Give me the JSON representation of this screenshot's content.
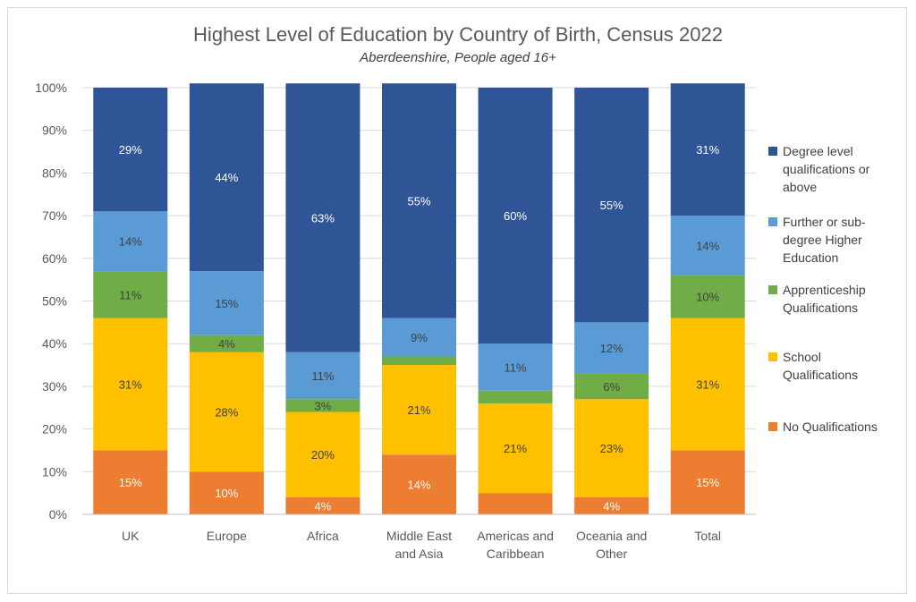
{
  "chart_data": {
    "type": "bar",
    "stacked": true,
    "title": "Highest Level of Education by Country of Birth, Census 2022",
    "subtitle": "Aberdeenshire, People aged 16+",
    "xlabel": "",
    "ylabel": "",
    "ylim": [
      0,
      100
    ],
    "yticks": [
      "0%",
      "10%",
      "20%",
      "30%",
      "40%",
      "50%",
      "60%",
      "70%",
      "80%",
      "90%",
      "100%"
    ],
    "grid": true,
    "legend_position": "right",
    "categories": [
      [
        "UK"
      ],
      [
        "Europe"
      ],
      [
        "Africa"
      ],
      [
        "Middle East",
        "and Asia"
      ],
      [
        "Americas and",
        "Caribbean"
      ],
      [
        "Oceania and",
        "Other"
      ],
      [
        "Total"
      ]
    ],
    "series": [
      {
        "name": "No Qualifications",
        "color": "#ed7d31",
        "label_color": "#ffffff",
        "values": [
          15,
          10,
          4,
          14,
          5,
          4,
          15
        ],
        "labels": [
          "15%",
          "10%",
          "4%",
          "14%",
          "",
          "4%",
          "15%"
        ]
      },
      {
        "name": "School Qualifications",
        "color": "#ffc000",
        "label_color": "#404040",
        "values": [
          31,
          28,
          20,
          21,
          21,
          23,
          31
        ],
        "labels": [
          "31%",
          "28%",
          "20%",
          "21%",
          "21%",
          "23%",
          "31%"
        ]
      },
      {
        "name": "Apprenticeship Qualifications",
        "color": "#70ad47",
        "label_color": "#404040",
        "values": [
          11,
          4,
          3,
          2,
          3,
          6,
          10
        ],
        "labels": [
          "11%",
          "4%",
          "3%",
          "",
          "",
          "6%",
          "10%"
        ]
      },
      {
        "name": "Further or sub-degree Higher Education",
        "color": "#5b9bd5",
        "label_color": "#404040",
        "values": [
          14,
          15,
          11,
          9,
          11,
          12,
          14
        ],
        "labels": [
          "14%",
          "15%",
          "11%",
          "9%",
          "11%",
          "12%",
          "14%"
        ]
      },
      {
        "name": "Degree level qualifications or above",
        "color": "#2f5597",
        "label_color": "#ffffff",
        "values": [
          29,
          44,
          63,
          55,
          60,
          55,
          31
        ],
        "labels": [
          "29%",
          "44%",
          "63%",
          "55%",
          "60%",
          "55%",
          "31%"
        ]
      }
    ],
    "legend": [
      {
        "lines": [
          "Degree level",
          "qualifications or",
          "above"
        ],
        "color": "#2f5597"
      },
      {
        "lines": [
          "Further or sub-",
          "degree Higher",
          "Education"
        ],
        "color": "#5b9bd5"
      },
      {
        "lines": [
          "Apprenticeship",
          "Qualifications"
        ],
        "color": "#70ad47"
      },
      {
        "lines": [
          "School",
          "Qualifications"
        ],
        "color": "#ffc000"
      },
      {
        "lines": [
          "No Qualifications"
        ],
        "color": "#ed7d31"
      }
    ]
  }
}
